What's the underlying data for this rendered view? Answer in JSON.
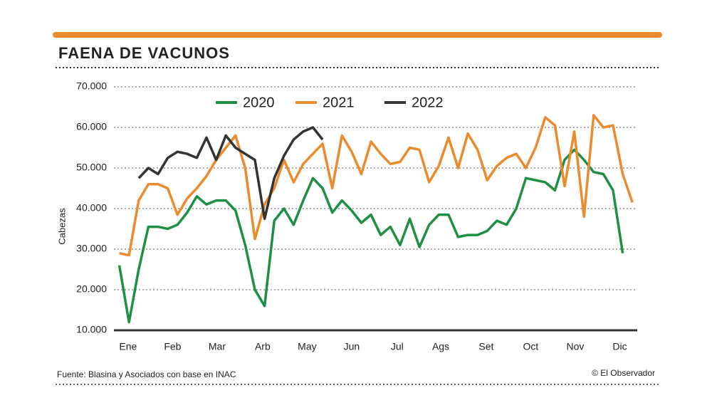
{
  "chart_data": {
    "type": "line",
    "title": "FAENA DE VACUNOS",
    "ylabel": "Cabezas",
    "source": "Fuente: Blasina y Asociados con base en  INAC",
    "credit": "© El Observador",
    "xlim": [
      -1.4,
      54.5
    ],
    "xticks": [
      {
        "value": 1.9,
        "label": "Ene"
      },
      {
        "value": 6.5,
        "label": "Feb"
      },
      {
        "value": 11.1,
        "label": "Mar"
      },
      {
        "value": 15.8,
        "label": "Arb"
      },
      {
        "value": 20.4,
        "label": "May"
      },
      {
        "value": 25.0,
        "label": "Jun"
      },
      {
        "value": 29.7,
        "label": "Jul"
      },
      {
        "value": 34.2,
        "label": "Ags"
      },
      {
        "value": 38.9,
        "label": "Set"
      },
      {
        "value": 43.5,
        "label": "Oct"
      },
      {
        "value": 48.1,
        "label": "Nov"
      },
      {
        "value": 52.7,
        "label": "Dic"
      }
    ],
    "ylim": [
      10000,
      70000
    ],
    "yticks": [
      {
        "value": 10000,
        "label": "10.000"
      },
      {
        "value": 20000,
        "label": "20.000"
      },
      {
        "value": 30000,
        "label": "30.000"
      },
      {
        "value": 40000,
        "label": "40.000"
      },
      {
        "value": 50000,
        "label": "50.000"
      },
      {
        "value": 60000,
        "label": "60.000"
      },
      {
        "value": 70000,
        "label": "70.000"
      }
    ],
    "grid": true,
    "legend": "top",
    "series": [
      {
        "name": "2020",
        "color": "#1f8f44",
        "x": [
          1,
          2,
          3,
          4,
          5,
          6,
          7,
          8,
          9,
          10,
          11,
          12,
          13,
          14,
          15,
          16,
          17,
          18,
          19,
          20,
          21,
          22,
          23,
          24,
          25,
          26,
          27,
          28,
          29,
          30,
          31,
          32,
          33,
          34,
          35,
          36,
          37,
          38,
          39,
          40,
          41,
          42,
          43,
          44,
          45,
          46,
          47,
          48,
          49,
          50,
          51,
          52,
          53
        ],
        "values": [
          26000,
          12000,
          25000,
          35500,
          35500,
          35000,
          36000,
          39000,
          43000,
          41000,
          42000,
          42000,
          39500,
          31000,
          20000,
          16000,
          37000,
          40000,
          36000,
          42000,
          47500,
          45000,
          39000,
          42000,
          39500,
          36500,
          38500,
          33500,
          35500,
          31000,
          37500,
          30500,
          36000,
          38500,
          38500,
          33000,
          33500,
          33500,
          34500,
          37000,
          36000,
          40000,
          47500,
          47000,
          46500,
          44500,
          52000,
          54500,
          52000,
          49000,
          48500,
          44500,
          29000
        ]
      },
      {
        "name": "2021",
        "color": "#ec8a2e",
        "x": [
          1,
          2,
          3,
          4,
          5,
          6,
          7,
          8,
          9,
          10,
          11,
          12,
          13,
          14,
          15,
          16,
          17,
          18,
          19,
          20,
          21,
          22,
          23,
          24,
          25,
          26,
          27,
          28,
          29,
          30,
          31,
          32,
          33,
          34,
          35,
          36,
          37,
          38,
          39,
          40,
          41,
          42,
          43,
          44,
          45,
          46,
          47,
          48,
          49,
          50,
          51,
          52,
          53,
          54
        ],
        "values": [
          29000,
          28500,
          42000,
          46000,
          46000,
          45000,
          38500,
          42500,
          45000,
          48000,
          52000,
          55000,
          58000,
          50000,
          32500,
          41000,
          45000,
          52000,
          46500,
          51000,
          53500,
          56000,
          45000,
          58000,
          54000,
          48500,
          56500,
          53500,
          51000,
          51500,
          55000,
          54500,
          46500,
          50500,
          57500,
          50000,
          58500,
          54500,
          47000,
          50500,
          52500,
          53500,
          50000,
          55000,
          62500,
          60500,
          45500,
          59000,
          38000,
          63000,
          60000,
          60500,
          48500,
          41500
        ]
      },
      {
        "name": "2022",
        "color": "#333333",
        "x": [
          3,
          4,
          5,
          6,
          7,
          8,
          9,
          10,
          11,
          12,
          13,
          14,
          15,
          16,
          17,
          18,
          19,
          20,
          21,
          22
        ],
        "values": [
          47500,
          50000,
          48500,
          52500,
          54000,
          53500,
          52500,
          57500,
          52000,
          58000,
          55000,
          53500,
          52000,
          37500,
          47500,
          53000,
          57000,
          59000,
          60000,
          57000
        ]
      }
    ]
  }
}
